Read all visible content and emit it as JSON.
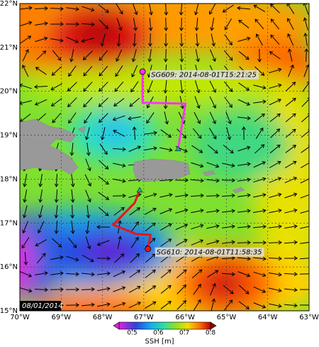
{
  "map": {
    "xlim": [
      -70,
      -63
    ],
    "ylim": [
      15,
      22
    ],
    "xticks": [
      {
        "value": -70,
        "label": "70°W"
      },
      {
        "value": -69,
        "label": "69°W"
      },
      {
        "value": -68,
        "label": "68°W"
      },
      {
        "value": -67,
        "label": "67°W"
      },
      {
        "value": -66,
        "label": "66°W"
      },
      {
        "value": -65,
        "label": "65°W"
      },
      {
        "value": -64,
        "label": "64°W"
      },
      {
        "value": -63,
        "label": "63°W"
      }
    ],
    "yticks": [
      {
        "value": 15,
        "label": "15°N"
      },
      {
        "value": 16,
        "label": "16°N"
      },
      {
        "value": 17,
        "label": "17°N"
      },
      {
        "value": 18,
        "label": "18°N"
      },
      {
        "value": 19,
        "label": "19°N"
      },
      {
        "value": 20,
        "label": "20°N"
      },
      {
        "value": 21,
        "label": "21°N"
      },
      {
        "value": 22,
        "label": "22°N"
      }
    ],
    "date": "08/01/2014",
    "tracks": [
      {
        "name": "SG609: 2014-08-01T15:21:25",
        "color": "#ff33ff",
        "lon": [
          -67.03,
          -67.03,
          -65.99,
          -66.17
        ],
        "lat": [
          20.45,
          19.74,
          19.72,
          18.69
        ]
      },
      {
        "name": "SG610: 2014-08-01T11:58:35",
        "color": "#e8141e",
        "lon": [
          -67.1,
          -67.22,
          -67.74,
          -67.19,
          -66.84,
          -66.9
        ],
        "lat": [
          17.75,
          17.46,
          16.96,
          16.75,
          16.73,
          16.41
        ]
      }
    ],
    "colorbar": {
      "label": "SSH [m]",
      "clim": [
        0.45,
        0.8
      ],
      "ticks": [
        0.5,
        0.6,
        0.7,
        0.8
      ]
    }
  }
}
